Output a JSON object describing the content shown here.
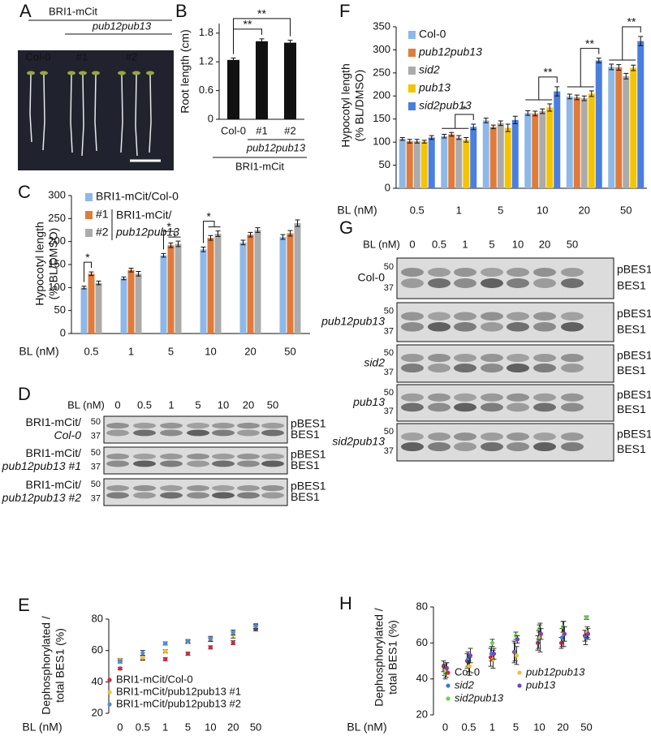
{
  "panel_labels": [
    "A",
    "B",
    "C",
    "D",
    "E",
    "F",
    "G",
    "H"
  ],
  "panel_a": {
    "group": "BRI1-mCit",
    "subgroup": "pub12pub13",
    "lanes": [
      "Col-0",
      "#1",
      "#2"
    ]
  },
  "blot_d": {
    "xlabel": "BL (nM)",
    "lanes": [
      "0",
      "0.5",
      "1",
      "5",
      "10",
      "20",
      "50"
    ],
    "rows": [
      [
        "BRI1-mCit/",
        "Col-0"
      ],
      [
        "BRI1-mCit/",
        "pub12pub13 #1"
      ],
      [
        "BRI1-mCit/",
        "pub12pub13 #2"
      ]
    ],
    "markers": [
      "50",
      "37"
    ],
    "bands": [
      "pBES1",
      "BES1"
    ]
  },
  "blot_g": {
    "xlabel": "BL (nM)",
    "lanes": [
      "0",
      "0.5",
      "1",
      "5",
      "10",
      "20",
      "50"
    ],
    "rows": [
      "Col-0",
      "pub12pub13",
      "sid2",
      "pub13",
      "sid2pub13"
    ],
    "markers": [
      "50",
      "37"
    ],
    "bands": [
      "pBES1",
      "BES1"
    ]
  },
  "chart_data": [
    {
      "type": "bar",
      "ylabel": "Root length (cm)",
      "categories": [
        "Col-0",
        "#1",
        "#2"
      ],
      "values": [
        1.24,
        1.63,
        1.6
      ],
      "errors": [
        0.04,
        0.05,
        0.05
      ],
      "color": "#111111",
      "ylim": [
        0,
        2.0
      ],
      "yticks": [
        0,
        0.6,
        1.2,
        1.8
      ],
      "group_labels": [
        "pub12pub13",
        "BRI1-mCit"
      ],
      "annotations": [
        "**",
        "**"
      ]
    },
    {
      "type": "bar",
      "ylabel": [
        "Hypocotyl length",
        "(% BL/DMSO)"
      ],
      "xlabel": "BL (nM)",
      "categories": [
        "0.5",
        "1",
        "5",
        "10",
        "20",
        "50"
      ],
      "series": [
        {
          "name": "BRI1-mCit/Col-0",
          "color": "#8db8e8",
          "values": [
            100,
            120,
            170,
            183,
            198,
            210
          ],
          "errors": [
            3,
            3,
            4,
            5,
            5,
            5
          ]
        },
        {
          "name": "#1",
          "color": "#e07b39",
          "values": [
            130,
            138,
            192,
            208,
            215,
            218
          ],
          "errors": [
            4,
            4,
            5,
            5,
            5,
            6
          ]
        },
        {
          "name": "#2",
          "color": "#ababab",
          "values": [
            110,
            130,
            195,
            217,
            225,
            240
          ],
          "errors": [
            4,
            5,
            6,
            6,
            5,
            7
          ]
        }
      ],
      "legend_note": [
        "BRI1-mCit/",
        "pub12pub13"
      ],
      "ylim": [
        0,
        300
      ],
      "yticks": [
        0,
        50,
        100,
        150,
        200,
        250,
        300
      ],
      "annotations": [
        "*",
        "*",
        "*"
      ]
    },
    {
      "type": "scatter",
      "ylabel": [
        "Dephosphorylated /",
        "total BES1 (%)"
      ],
      "xlabel": "BL (nM)",
      "categories": [
        "0",
        "0.5",
        "1",
        "5",
        "10",
        "20",
        "50"
      ],
      "series": [
        {
          "name": "BRI1-mCit/Col-0",
          "color": "#d9263a",
          "values": [
            48.5,
            55,
            54.5,
            58,
            62,
            65,
            74
          ],
          "errors": [
            0.8,
            1.2,
            1,
            1,
            1,
            1.2,
            1.5
          ]
        },
        {
          "name": "BRI1-mCit/pub12pub13 #1",
          "color": "#f2c12e",
          "values": [
            54,
            55.5,
            59.5,
            65.5,
            67,
            70,
            75
          ],
          "errors": [
            1,
            1.5,
            1,
            1,
            1.2,
            2,
            1.5
          ]
        },
        {
          "name": "BRI1-mCit/pub12pub13 #2",
          "color": "#4a90d9",
          "values": [
            53,
            58.5,
            64.5,
            66,
            67.5,
            71.5,
            75.5
          ],
          "errors": [
            1,
            1.5,
            1,
            1,
            1.5,
            1.5,
            1.5
          ]
        }
      ],
      "ylim": [
        20,
        80
      ],
      "yticks": [
        20,
        40,
        60,
        80
      ]
    },
    {
      "type": "bar",
      "ylabel": [
        "Hypocotyl length",
        "(% BL/DMSO)"
      ],
      "xlabel": "BL (nM)",
      "categories": [
        "0.5",
        "1",
        "5",
        "10",
        "20",
        "50"
      ],
      "series": [
        {
          "name": "Col-0",
          "color": "#8db8e8",
          "values": [
            107,
            113,
            147,
            163,
            199,
            263
          ],
          "errors": [
            3,
            4,
            5,
            5,
            5,
            6
          ]
        },
        {
          "name": "pub12pub13",
          "color": "#e07b39",
          "values": [
            102,
            117,
            133,
            162,
            197,
            262
          ],
          "errors": [
            4,
            4,
            4,
            5,
            5,
            6
          ]
        },
        {
          "name": "sid2",
          "color": "#ababab",
          "values": [
            102,
            110,
            141,
            167,
            195,
            243
          ],
          "errors": [
            4,
            4,
            5,
            5,
            5,
            6
          ]
        },
        {
          "name": "pub13",
          "color": "#f5c400",
          "values": [
            101,
            105,
            131,
            175,
            205,
            261
          ],
          "errors": [
            3,
            5,
            8,
            8,
            6,
            6
          ]
        },
        {
          "name": "sid2pub13",
          "color": "#4a7fe0",
          "values": [
            110,
            133,
            148,
            210,
            277,
            319
          ],
          "errors": [
            4,
            6,
            8,
            10,
            5,
            10
          ]
        }
      ],
      "ylim": [
        0,
        350
      ],
      "yticks": [
        0,
        50,
        100,
        150,
        200,
        250,
        300,
        350
      ],
      "annotations": [
        "*",
        "**",
        "**",
        "**"
      ]
    },
    {
      "type": "scatter",
      "ylabel": [
        "Dephosphorylated /",
        "total BES1 (%)"
      ],
      "xlabel": "BL (nM)",
      "categories": [
        "0",
        "0.5",
        "1",
        "5",
        "10",
        "20",
        "50"
      ],
      "series": [
        {
          "name": "Col-0",
          "color": "#d9263a",
          "values": [
            47,
            50,
            52,
            55,
            60,
            60,
            64
          ],
          "errors": [
            3,
            4,
            5,
            6,
            4,
            3,
            3
          ]
        },
        {
          "name": "sid2",
          "color": "#3a7bd5",
          "values": [
            45,
            51,
            54,
            55,
            62,
            63,
            63
          ],
          "errors": [
            3,
            4,
            4,
            5,
            5,
            5,
            4
          ]
        },
        {
          "name": "sid2pub13",
          "color": "#6ad44a",
          "values": [
            43,
            47,
            60,
            64,
            68,
            69,
            74
          ],
          "errors": [
            3,
            3,
            2,
            2,
            2,
            3,
            1
          ]
        },
        {
          "name": "pub12pub13",
          "color": "#f2c12e",
          "values": [
            45,
            47,
            51,
            53,
            63,
            65,
            66
          ],
          "errors": [
            4,
            5,
            5,
            5,
            8,
            7,
            3
          ]
        },
        {
          "name": "pub13",
          "color": "#7b3fc4",
          "values": [
            46,
            53,
            54,
            62,
            65,
            65,
            65
          ],
          "errors": [
            3,
            4,
            3,
            2,
            3,
            4,
            3
          ]
        }
      ],
      "ylim": [
        20,
        80
      ],
      "yticks": [
        20,
        40,
        60,
        80
      ]
    }
  ]
}
